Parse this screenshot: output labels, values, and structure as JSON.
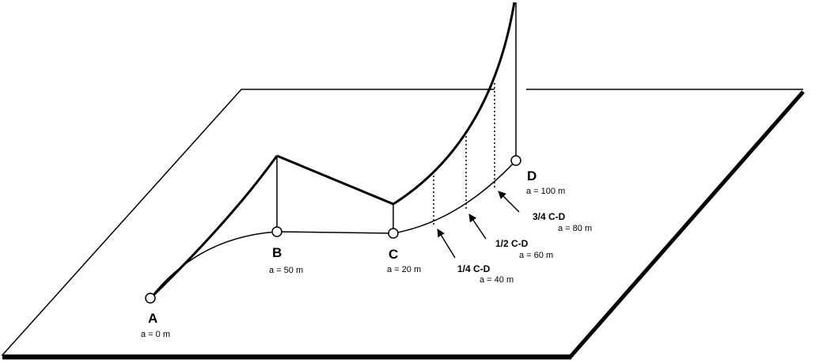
{
  "points": {
    "a": {
      "label": "A",
      "value": "a = 0 m"
    },
    "b": {
      "label": "B",
      "value": "a = 50 m"
    },
    "c": {
      "label": "C",
      "value": "a = 20 m"
    },
    "d": {
      "label": "D",
      "value": "a = 100 m"
    }
  },
  "fractions": {
    "q1": {
      "label": "1/4 C-D",
      "value": "a = 40 m"
    },
    "q2": {
      "label": "1/2 C-D",
      "value": "a = 60 m"
    },
    "q3": {
      "label": "3/4 C-D",
      "value": "a = 80 m"
    }
  },
  "colors": {
    "line": "#000000",
    "background": "#ffffff"
  }
}
